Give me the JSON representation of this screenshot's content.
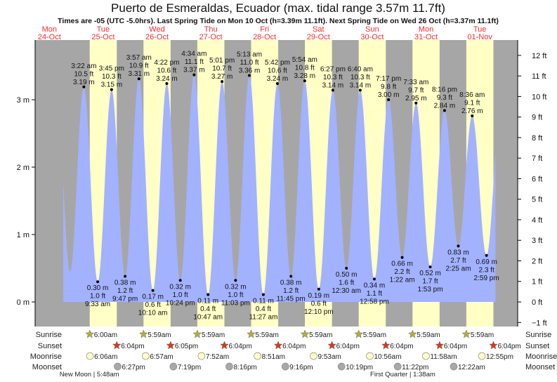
{
  "chart_data": {
    "type": "area",
    "title": "Puerto de Esmeraldas, Ecuador (max. tidal range 3.57m 11.7ft)",
    "subtitle": "Times are -05 (UTC -5.0hrs). Last Spring Tide on Mon 10 Oct (h=3.39m 11.1ft). Next Spring Tide on Wed 26 Oct (h=3.37m 11.1ft)",
    "days": [
      {
        "dow": "Mon",
        "date": "24-Oct"
      },
      {
        "dow": "Tue",
        "date": "25-Oct"
      },
      {
        "dow": "Wed",
        "date": "26-Oct"
      },
      {
        "dow": "Thu",
        "date": "27-Oct"
      },
      {
        "dow": "Fri",
        "date": "28-Oct"
      },
      {
        "dow": "Sat",
        "date": "29-Oct"
      },
      {
        "dow": "Sun",
        "date": "30-Oct"
      },
      {
        "dow": "Mon",
        "date": "31-Oct"
      },
      {
        "dow": "Tue",
        "date": "01-Nov"
      }
    ],
    "y_left": {
      "unit": "m",
      "ticks": [
        0,
        1,
        2,
        3
      ],
      "labels": [
        "0 m",
        "1 m",
        "2 m",
        "3 m"
      ]
    },
    "y_right": {
      "unit": "ft",
      "ticks": [
        -1,
        0,
        1,
        2,
        3,
        4,
        5,
        6,
        7,
        8,
        9,
        10,
        11,
        12
      ],
      "labels": [
        "−1 ft",
        "0 ft",
        "1 ft",
        "2 ft",
        "3 ft",
        "4 ft",
        "5 ft",
        "6 ft",
        "7 ft",
        "8 ft",
        "9 ft",
        "10 ft",
        "11 ft",
        "12 ft"
      ]
    },
    "tides": [
      {
        "day": 1,
        "type": "high",
        "time": "3:22 am",
        "ft": "10.5 ft",
        "m": "3.19 m",
        "h": 3.19
      },
      {
        "day": 1,
        "type": "low",
        "time": "9:33 am",
        "ft": "1.0 ft",
        "m": "0.30 m",
        "h": 0.3
      },
      {
        "day": 1,
        "type": "high",
        "time": "3:45 pm",
        "ft": "10.3 ft",
        "m": "3.15 m",
        "h": 3.15
      },
      {
        "day": 1,
        "type": "low",
        "time": "9:47 pm",
        "ft": "1.2 ft",
        "m": "0.38 m",
        "h": 0.38
      },
      {
        "day": 2,
        "type": "high",
        "time": "3:57 am",
        "ft": "10.9 ft",
        "m": "3.31 m",
        "h": 3.31
      },
      {
        "day": 2,
        "type": "low",
        "time": "10:10 am",
        "ft": "0.6 ft",
        "m": "0.17 m",
        "h": 0.17
      },
      {
        "day": 2,
        "type": "high",
        "time": "4:22 pm",
        "ft": "10.6 ft",
        "m": "3.24 m",
        "h": 3.24
      },
      {
        "day": 2,
        "type": "low",
        "time": "10:24 pm",
        "ft": "1.0 ft",
        "m": "0.32 m",
        "h": 0.32
      },
      {
        "day": 3,
        "type": "high",
        "time": "4:34 am",
        "ft": "11.1 ft",
        "m": "3.37 m",
        "h": 3.37
      },
      {
        "day": 3,
        "type": "low",
        "time": "10:47 am",
        "ft": "0.4 ft",
        "m": "0.11 m",
        "h": 0.11
      },
      {
        "day": 3,
        "type": "high",
        "time": "5:01 pm",
        "ft": "10.7 ft",
        "m": "3.27 m",
        "h": 3.27
      },
      {
        "day": 3,
        "type": "low",
        "time": "11:03 pm",
        "ft": "1.0 ft",
        "m": "0.32 m",
        "h": 0.32
      },
      {
        "day": 4,
        "type": "high",
        "time": "5:13 am",
        "ft": "11.0 ft",
        "m": "3.36 m",
        "h": 3.36
      },
      {
        "day": 4,
        "type": "low",
        "time": "11:27 am",
        "ft": "0.4 ft",
        "m": "0.11 m",
        "h": 0.11
      },
      {
        "day": 4,
        "type": "high",
        "time": "5:42 pm",
        "ft": "10.6 ft",
        "m": "3.24 m",
        "h": 3.24
      },
      {
        "day": 4,
        "type": "low",
        "time": "11:45 pm",
        "ft": "1.2 ft",
        "m": "0.38 m",
        "h": 0.38
      },
      {
        "day": 5,
        "type": "high",
        "time": "5:54 am",
        "ft": "10.8 ft",
        "m": "3.28 m",
        "h": 3.28
      },
      {
        "day": 5,
        "type": "low",
        "time": "12:10 pm",
        "ft": "0.6 ft",
        "m": "0.19 m",
        "h": 0.19
      },
      {
        "day": 5,
        "type": "high",
        "time": "6:27 pm",
        "ft": "10.3 ft",
        "m": "3.14 m",
        "h": 3.14
      },
      {
        "day": 6,
        "type": "low",
        "time": "12:30 am",
        "ft": "1.6 ft",
        "m": "0.50 m",
        "h": 0.5
      },
      {
        "day": 6,
        "type": "high",
        "time": "6:40 am",
        "ft": "10.3 ft",
        "m": "3.14 m",
        "h": 3.14
      },
      {
        "day": 6,
        "type": "low",
        "time": "12:58 pm",
        "ft": "1.1 ft",
        "m": "0.34 m",
        "h": 0.34
      },
      {
        "day": 6,
        "type": "high",
        "time": "7:17 pm",
        "ft": "9.8 ft",
        "m": "3.00 m",
        "h": 3.0
      },
      {
        "day": 7,
        "type": "low",
        "time": "1:22 am",
        "ft": "2.2 ft",
        "m": "0.66 m",
        "h": 0.66
      },
      {
        "day": 7,
        "type": "high",
        "time": "7:33 am",
        "ft": "9.7 ft",
        "m": "2.95 m",
        "h": 2.95
      },
      {
        "day": 7,
        "type": "low",
        "time": "1:53 pm",
        "ft": "1.7 ft",
        "m": "0.52 m",
        "h": 0.52
      },
      {
        "day": 7,
        "type": "high",
        "time": "8:16 pm",
        "ft": "9.3 ft",
        "m": "2.84 m",
        "h": 2.84
      },
      {
        "day": 8,
        "type": "low",
        "time": "2:25 am",
        "ft": "2.7 ft",
        "m": "0.83 m",
        "h": 0.83
      },
      {
        "day": 8,
        "type": "high",
        "time": "8:36 am",
        "ft": "9.1 ft",
        "m": "2.76 m",
        "h": 2.76
      },
      {
        "day": 8,
        "type": "low",
        "time": "2:59 pm",
        "ft": "2.3 ft",
        "m": "0.69 m",
        "h": 0.69
      }
    ],
    "curve_edges": {
      "start_hours": 18.2,
      "end_hours": 211,
      "before": [
        {
          "t": 15.1,
          "h": 3.2
        },
        {
          "t": 21.2,
          "h": 0.45
        }
      ],
      "after": [
        {
          "t": 213.2,
          "h": 2.85
        }
      ]
    },
    "colors": {
      "night": "#a6a6a6",
      "day": "#ffffc6",
      "water": "#a2b2ff",
      "dayLabel": "#ff2a2a",
      "sunrise": "#b5b030",
      "sunset": "#d83a1e",
      "moonrise": "#ffffc6",
      "moonset": "#a8a8a8"
    }
  },
  "almanac": {
    "labels": {
      "sunrise": "Sunrise",
      "sunset": "Sunset",
      "moonrise": "Moonrise",
      "moonset": "Moonset"
    },
    "sunrise": [
      {
        "day": 1,
        "time": "6:00am"
      },
      {
        "day": 2,
        "time": "5:59am"
      },
      {
        "day": 3,
        "time": "5:59am"
      },
      {
        "day": 4,
        "time": "5:59am"
      },
      {
        "day": 5,
        "time": "5:59am"
      },
      {
        "day": 6,
        "time": "5:59am"
      },
      {
        "day": 7,
        "time": "5:59am"
      },
      {
        "day": 8,
        "time": "5:59am"
      }
    ],
    "sunset": [
      {
        "day": 1,
        "time": "6:04pm"
      },
      {
        "day": 2,
        "time": "6:05pm"
      },
      {
        "day": 3,
        "time": "6:04pm"
      },
      {
        "day": 4,
        "time": "6:04pm"
      },
      {
        "day": 5,
        "time": "6:04pm"
      },
      {
        "day": 6,
        "time": "6:04pm"
      },
      {
        "day": 7,
        "time": "6:04pm"
      },
      {
        "day": 8,
        "time": "6:04pm"
      }
    ],
    "moonrise": [
      {
        "day": 1,
        "time": "6:06am"
      },
      {
        "day": 2,
        "time": "6:57am"
      },
      {
        "day": 3,
        "time": "7:52am"
      },
      {
        "day": 4,
        "time": "8:51am"
      },
      {
        "day": 5,
        "time": "9:53am"
      },
      {
        "day": 6,
        "time": "10:56am"
      },
      {
        "day": 7,
        "time": "11:58am"
      },
      {
        "day": 8,
        "time": "12:55pm"
      }
    ],
    "moonset": [
      {
        "day": 1,
        "time": "6:27pm"
      },
      {
        "day": 2,
        "time": "7:19pm"
      },
      {
        "day": 3,
        "time": "8:16pm"
      },
      {
        "day": 4,
        "time": "9:16pm"
      },
      {
        "day": 5,
        "time": "10:19pm"
      },
      {
        "day": 6,
        "time": "11:22pm"
      },
      {
        "day": 8,
        "time": "12:22am"
      }
    ],
    "moon_phases": [
      {
        "day": 1,
        "time": "5:48am",
        "text": "New Moon | 5:48am"
      },
      {
        "day": 7,
        "time": "1:38am",
        "text": "First Quarter | 1:38am"
      }
    ]
  }
}
